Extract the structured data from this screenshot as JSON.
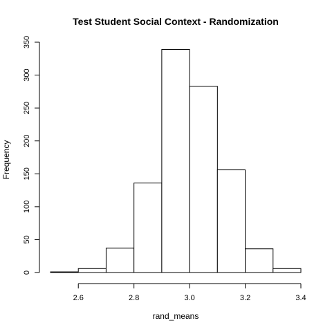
{
  "chart_data": {
    "type": "bar",
    "title": "Test Student Social Context - Randomization",
    "xlabel": "rand_means",
    "ylabel": "Frequency",
    "xlim": [
      2.5,
      3.4
    ],
    "ylim": [
      0,
      350
    ],
    "x_ticks": [
      2.6,
      2.8,
      3.0,
      3.2,
      3.4
    ],
    "x_tick_labels": [
      "2.6",
      "2.8",
      "3.0",
      "3.2",
      "3.4"
    ],
    "y_ticks": [
      0,
      50,
      100,
      150,
      200,
      250,
      300,
      350
    ],
    "y_tick_labels": [
      "0",
      "50",
      "100",
      "150",
      "200",
      "250",
      "300",
      "350"
    ],
    "bins": [
      {
        "start": 2.5,
        "end": 2.6,
        "count": 1
      },
      {
        "start": 2.6,
        "end": 2.7,
        "count": 6
      },
      {
        "start": 2.7,
        "end": 2.8,
        "count": 37
      },
      {
        "start": 2.8,
        "end": 2.9,
        "count": 136
      },
      {
        "start": 2.9,
        "end": 3.0,
        "count": 339
      },
      {
        "start": 3.0,
        "end": 3.1,
        "count": 283
      },
      {
        "start": 3.1,
        "end": 3.2,
        "count": 156
      },
      {
        "start": 3.2,
        "end": 3.3,
        "count": 36
      },
      {
        "start": 3.3,
        "end": 3.4,
        "count": 6
      }
    ],
    "grid": false,
    "legend": "none",
    "bar_fill": "#ffffff",
    "bar_stroke": "#000000"
  }
}
